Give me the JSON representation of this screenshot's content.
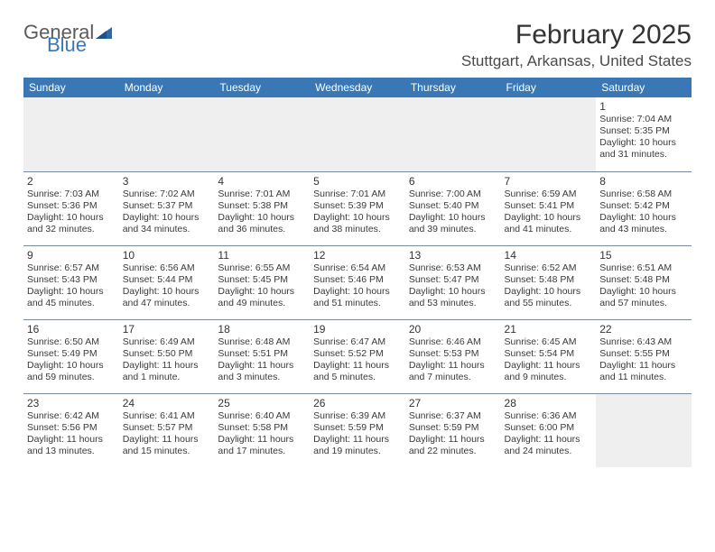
{
  "brand": {
    "part1": "General",
    "part2": "Blue"
  },
  "title": "February 2025",
  "location": "Stuttgart, Arkansas, United States",
  "header_bg": "#3a78b5",
  "weekday_labels": [
    "Sunday",
    "Monday",
    "Tuesday",
    "Wednesday",
    "Thursday",
    "Friday",
    "Saturday"
  ],
  "weeks": [
    [
      null,
      null,
      null,
      null,
      null,
      null,
      {
        "n": "1",
        "sunrise": "Sunrise: 7:04 AM",
        "sunset": "Sunset: 5:35 PM",
        "daylight": "Daylight: 10 hours and 31 minutes."
      }
    ],
    [
      {
        "n": "2",
        "sunrise": "Sunrise: 7:03 AM",
        "sunset": "Sunset: 5:36 PM",
        "daylight": "Daylight: 10 hours and 32 minutes."
      },
      {
        "n": "3",
        "sunrise": "Sunrise: 7:02 AM",
        "sunset": "Sunset: 5:37 PM",
        "daylight": "Daylight: 10 hours and 34 minutes."
      },
      {
        "n": "4",
        "sunrise": "Sunrise: 7:01 AM",
        "sunset": "Sunset: 5:38 PM",
        "daylight": "Daylight: 10 hours and 36 minutes."
      },
      {
        "n": "5",
        "sunrise": "Sunrise: 7:01 AM",
        "sunset": "Sunset: 5:39 PM",
        "daylight": "Daylight: 10 hours and 38 minutes."
      },
      {
        "n": "6",
        "sunrise": "Sunrise: 7:00 AM",
        "sunset": "Sunset: 5:40 PM",
        "daylight": "Daylight: 10 hours and 39 minutes."
      },
      {
        "n": "7",
        "sunrise": "Sunrise: 6:59 AM",
        "sunset": "Sunset: 5:41 PM",
        "daylight": "Daylight: 10 hours and 41 minutes."
      },
      {
        "n": "8",
        "sunrise": "Sunrise: 6:58 AM",
        "sunset": "Sunset: 5:42 PM",
        "daylight": "Daylight: 10 hours and 43 minutes."
      }
    ],
    [
      {
        "n": "9",
        "sunrise": "Sunrise: 6:57 AM",
        "sunset": "Sunset: 5:43 PM",
        "daylight": "Daylight: 10 hours and 45 minutes."
      },
      {
        "n": "10",
        "sunrise": "Sunrise: 6:56 AM",
        "sunset": "Sunset: 5:44 PM",
        "daylight": "Daylight: 10 hours and 47 minutes."
      },
      {
        "n": "11",
        "sunrise": "Sunrise: 6:55 AM",
        "sunset": "Sunset: 5:45 PM",
        "daylight": "Daylight: 10 hours and 49 minutes."
      },
      {
        "n": "12",
        "sunrise": "Sunrise: 6:54 AM",
        "sunset": "Sunset: 5:46 PM",
        "daylight": "Daylight: 10 hours and 51 minutes."
      },
      {
        "n": "13",
        "sunrise": "Sunrise: 6:53 AM",
        "sunset": "Sunset: 5:47 PM",
        "daylight": "Daylight: 10 hours and 53 minutes."
      },
      {
        "n": "14",
        "sunrise": "Sunrise: 6:52 AM",
        "sunset": "Sunset: 5:48 PM",
        "daylight": "Daylight: 10 hours and 55 minutes."
      },
      {
        "n": "15",
        "sunrise": "Sunrise: 6:51 AM",
        "sunset": "Sunset: 5:48 PM",
        "daylight": "Daylight: 10 hours and 57 minutes."
      }
    ],
    [
      {
        "n": "16",
        "sunrise": "Sunrise: 6:50 AM",
        "sunset": "Sunset: 5:49 PM",
        "daylight": "Daylight: 10 hours and 59 minutes."
      },
      {
        "n": "17",
        "sunrise": "Sunrise: 6:49 AM",
        "sunset": "Sunset: 5:50 PM",
        "daylight": "Daylight: 11 hours and 1 minute."
      },
      {
        "n": "18",
        "sunrise": "Sunrise: 6:48 AM",
        "sunset": "Sunset: 5:51 PM",
        "daylight": "Daylight: 11 hours and 3 minutes."
      },
      {
        "n": "19",
        "sunrise": "Sunrise: 6:47 AM",
        "sunset": "Sunset: 5:52 PM",
        "daylight": "Daylight: 11 hours and 5 minutes."
      },
      {
        "n": "20",
        "sunrise": "Sunrise: 6:46 AM",
        "sunset": "Sunset: 5:53 PM",
        "daylight": "Daylight: 11 hours and 7 minutes."
      },
      {
        "n": "21",
        "sunrise": "Sunrise: 6:45 AM",
        "sunset": "Sunset: 5:54 PM",
        "daylight": "Daylight: 11 hours and 9 minutes."
      },
      {
        "n": "22",
        "sunrise": "Sunrise: 6:43 AM",
        "sunset": "Sunset: 5:55 PM",
        "daylight": "Daylight: 11 hours and 11 minutes."
      }
    ],
    [
      {
        "n": "23",
        "sunrise": "Sunrise: 6:42 AM",
        "sunset": "Sunset: 5:56 PM",
        "daylight": "Daylight: 11 hours and 13 minutes."
      },
      {
        "n": "24",
        "sunrise": "Sunrise: 6:41 AM",
        "sunset": "Sunset: 5:57 PM",
        "daylight": "Daylight: 11 hours and 15 minutes."
      },
      {
        "n": "25",
        "sunrise": "Sunrise: 6:40 AM",
        "sunset": "Sunset: 5:58 PM",
        "daylight": "Daylight: 11 hours and 17 minutes."
      },
      {
        "n": "26",
        "sunrise": "Sunrise: 6:39 AM",
        "sunset": "Sunset: 5:59 PM",
        "daylight": "Daylight: 11 hours and 19 minutes."
      },
      {
        "n": "27",
        "sunrise": "Sunrise: 6:37 AM",
        "sunset": "Sunset: 5:59 PM",
        "daylight": "Daylight: 11 hours and 22 minutes."
      },
      {
        "n": "28",
        "sunrise": "Sunrise: 6:36 AM",
        "sunset": "Sunset: 6:00 PM",
        "daylight": "Daylight: 11 hours and 24 minutes."
      },
      null
    ]
  ]
}
